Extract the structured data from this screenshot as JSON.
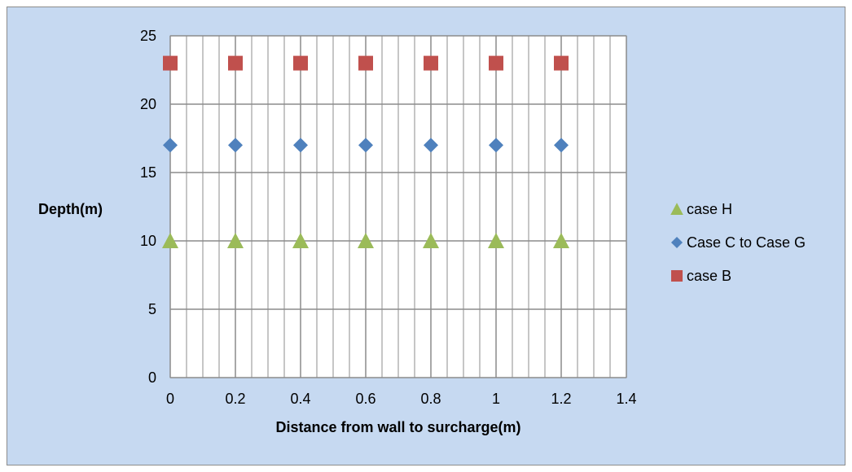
{
  "chart_data": {
    "type": "scatter",
    "title": "",
    "xlabel": "Distance from wall to surcharge(m)",
    "ylabel": "Depth(m)",
    "xlim": [
      0,
      1.4
    ],
    "ylim": [
      0,
      25
    ],
    "x_ticks": [
      0,
      0.2,
      0.4,
      0.6,
      0.8,
      1,
      1.2,
      1.4
    ],
    "y_ticks": [
      0,
      5,
      10,
      15,
      20,
      25
    ],
    "x_minor_step": 0.05,
    "grid": true,
    "legend_position": "right",
    "series": [
      {
        "name": "case H",
        "marker": "triangle",
        "color": "#9bbb59",
        "x": [
          0,
          0.2,
          0.4,
          0.6,
          0.8,
          1,
          1.2
        ],
        "y": [
          10,
          10,
          10,
          10,
          10,
          10,
          10
        ]
      },
      {
        "name": "Case C to Case G",
        "marker": "diamond",
        "color": "#4f81bd",
        "x": [
          0,
          0.2,
          0.4,
          0.6,
          0.8,
          1,
          1.2
        ],
        "y": [
          17,
          17,
          17,
          17,
          17,
          17,
          17
        ]
      },
      {
        "name": "case B",
        "marker": "square",
        "color": "#c0504d",
        "x": [
          0,
          0.2,
          0.4,
          0.6,
          0.8,
          1,
          1.2
        ],
        "y": [
          23,
          23,
          23,
          23,
          23,
          23,
          23
        ]
      }
    ]
  },
  "colors": {
    "chart_background": "#c6d9f1",
    "plot_background": "#ffffff",
    "gridline": "#8c8c8c"
  }
}
